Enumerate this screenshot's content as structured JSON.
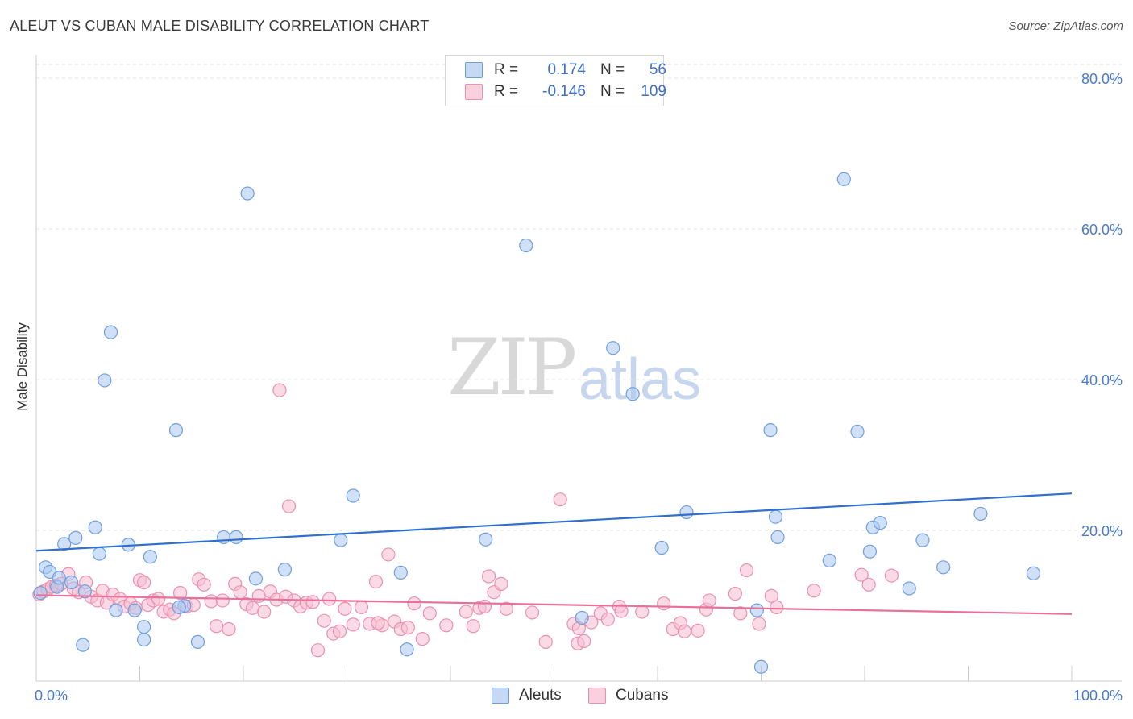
{
  "header": {
    "title": "ALEUT VS CUBAN MALE DISABILITY CORRELATION CHART",
    "source": "Source: ZipAtlas.com"
  },
  "watermark": {
    "zip": "ZIP",
    "atlas": "atlas"
  },
  "legend": {
    "r_label": "R =",
    "n_label": "N =",
    "rows": [
      {
        "series": "Aleuts",
        "r": "0.174",
        "n": "56"
      },
      {
        "series": "Cubans",
        "r": "-0.146",
        "n": "109"
      }
    ]
  },
  "colors": {
    "aleuts_fill": "#aac8f0",
    "aleuts_stroke": "#6f9ee0",
    "aleuts_line": "#2f6fcf",
    "cubans_fill": "#f6bdd0",
    "cubans_stroke": "#ec8fae",
    "cubans_line": "#e8709a",
    "tick_text": "#4a7bd0"
  },
  "chart_data": {
    "type": "scatter",
    "title": "ALEUT VS CUBAN MALE DISABILITY CORRELATION CHART",
    "ylabel": "Male Disability",
    "xlim": [
      0,
      100
    ],
    "ylim": [
      0,
      80
    ],
    "y_ticks": [
      {
        "value": 20,
        "label": "20.0%"
      },
      {
        "value": 40,
        "label": "40.0%"
      },
      {
        "value": 60,
        "label": "60.0%"
      },
      {
        "value": 80,
        "label": "80.0%"
      }
    ],
    "x_tick_labels": [
      {
        "value": 0,
        "label": "0.0%"
      },
      {
        "value": 100,
        "label": "100.0%"
      }
    ],
    "x_minor_ticks": [
      10,
      20,
      30,
      40,
      50,
      60,
      70,
      80,
      90,
      100
    ],
    "grid": "horizontal dashed",
    "legend_position": "top-center",
    "series": [
      {
        "name": "Aleuts",
        "trend": [
          [
            0,
            17.3
          ],
          [
            100,
            24.9
          ]
        ],
        "points": [
          [
            0.4,
            11.7
          ],
          [
            0.9,
            15.1
          ],
          [
            1.3,
            14.5
          ],
          [
            2.0,
            12.5
          ],
          [
            2.2,
            13.7
          ],
          [
            2.7,
            18.2
          ],
          [
            3.4,
            13.1
          ],
          [
            3.8,
            19.0
          ],
          [
            4.5,
            4.8
          ],
          [
            4.7,
            11.9
          ],
          [
            5.7,
            20.4
          ],
          [
            6.1,
            16.9
          ],
          [
            7.2,
            46.3
          ],
          [
            7.7,
            9.4
          ],
          [
            6.6,
            39.9
          ],
          [
            8.9,
            18.1
          ],
          [
            9.5,
            9.4
          ],
          [
            10.4,
            7.2
          ],
          [
            10.4,
            5.5
          ],
          [
            11.0,
            16.5
          ],
          [
            13.5,
            33.3
          ],
          [
            14.3,
            10.0
          ],
          [
            15.6,
            5.2
          ],
          [
            18.1,
            19.1
          ],
          [
            19.3,
            19.1
          ],
          [
            20.4,
            64.7
          ],
          [
            21.2,
            13.6
          ],
          [
            24.0,
            14.8
          ],
          [
            29.4,
            18.7
          ],
          [
            30.6,
            24.6
          ],
          [
            35.2,
            14.4
          ],
          [
            35.8,
            4.2
          ],
          [
            43.4,
            18.8
          ],
          [
            47.3,
            57.8
          ],
          [
            52.7,
            8.4
          ],
          [
            55.7,
            44.2
          ],
          [
            57.6,
            38.1
          ],
          [
            60.4,
            17.7
          ],
          [
            62.8,
            22.4
          ],
          [
            69.6,
            9.4
          ],
          [
            70.9,
            33.3
          ],
          [
            71.4,
            21.8
          ],
          [
            71.6,
            19.1
          ],
          [
            76.6,
            16.0
          ],
          [
            78.0,
            66.6
          ],
          [
            79.3,
            33.1
          ],
          [
            80.5,
            17.2
          ],
          [
            80.8,
            20.4
          ],
          [
            81.5,
            21.0
          ],
          [
            84.3,
            12.3
          ],
          [
            85.6,
            18.7
          ],
          [
            87.6,
            15.1
          ],
          [
            91.2,
            22.2
          ],
          [
            96.3,
            14.3
          ],
          [
            70.0,
            1.9
          ],
          [
            13.8,
            9.8
          ]
        ]
      },
      {
        "name": "Cubans",
        "trend": [
          [
            0,
            11.4
          ],
          [
            100,
            8.9
          ]
        ],
        "points": [
          [
            0.3,
            11.5
          ],
          [
            0.7,
            11.9
          ],
          [
            1.1,
            12.2
          ],
          [
            1.5,
            12.5
          ],
          [
            1.9,
            12.7
          ],
          [
            2.4,
            12.9
          ],
          [
            3.1,
            14.2
          ],
          [
            3.6,
            12.3
          ],
          [
            4.1,
            11.8
          ],
          [
            4.8,
            13.1
          ],
          [
            5.3,
            11.2
          ],
          [
            5.9,
            10.7
          ],
          [
            6.4,
            12.0
          ],
          [
            6.8,
            10.4
          ],
          [
            7.4,
            11.5
          ],
          [
            8.1,
            10.9
          ],
          [
            8.5,
            9.9
          ],
          [
            9.1,
            10.3
          ],
          [
            9.6,
            9.7
          ],
          [
            10.0,
            13.4
          ],
          [
            10.4,
            13.1
          ],
          [
            10.8,
            10.1
          ],
          [
            11.3,
            10.7
          ],
          [
            11.8,
            10.9
          ],
          [
            12.3,
            9.2
          ],
          [
            12.9,
            9.5
          ],
          [
            13.3,
            9.0
          ],
          [
            13.9,
            11.7
          ],
          [
            14.5,
            9.9
          ],
          [
            15.2,
            10.1
          ],
          [
            15.7,
            13.5
          ],
          [
            16.2,
            12.8
          ],
          [
            16.9,
            10.6
          ],
          [
            17.4,
            7.3
          ],
          [
            18.0,
            10.7
          ],
          [
            18.6,
            6.9
          ],
          [
            19.2,
            12.9
          ],
          [
            19.7,
            11.8
          ],
          [
            20.3,
            10.2
          ],
          [
            20.9,
            9.7
          ],
          [
            21.5,
            11.3
          ],
          [
            22.0,
            9.2
          ],
          [
            22.6,
            11.9
          ],
          [
            23.2,
            10.8
          ],
          [
            23.5,
            38.6
          ],
          [
            24.1,
            11.2
          ],
          [
            24.4,
            23.2
          ],
          [
            24.9,
            10.7
          ],
          [
            25.5,
            9.9
          ],
          [
            26.1,
            10.4
          ],
          [
            26.7,
            10.5
          ],
          [
            27.2,
            4.1
          ],
          [
            27.8,
            8.0
          ],
          [
            28.3,
            10.9
          ],
          [
            28.7,
            6.3
          ],
          [
            29.3,
            6.6
          ],
          [
            29.8,
            9.6
          ],
          [
            30.6,
            7.5
          ],
          [
            31.4,
            9.8
          ],
          [
            32.2,
            7.6
          ],
          [
            32.8,
            13.2
          ],
          [
            33.4,
            7.4
          ],
          [
            34.0,
            16.8
          ],
          [
            34.6,
            7.9
          ],
          [
            35.2,
            6.9
          ],
          [
            35.9,
            7.1
          ],
          [
            36.5,
            10.3
          ],
          [
            37.3,
            5.6
          ],
          [
            38.0,
            9.0
          ],
          [
            39.6,
            7.4
          ],
          [
            41.5,
            9.2
          ],
          [
            42.2,
            7.3
          ],
          [
            42.8,
            9.7
          ],
          [
            43.3,
            9.9
          ],
          [
            43.7,
            13.9
          ],
          [
            44.2,
            11.8
          ],
          [
            44.9,
            12.9
          ],
          [
            45.4,
            9.6
          ],
          [
            47.9,
            9.1
          ],
          [
            49.2,
            5.2
          ],
          [
            50.6,
            24.1
          ],
          [
            51.9,
            7.6
          ],
          [
            52.3,
            5.0
          ],
          [
            52.9,
            5.3
          ],
          [
            53.6,
            7.8
          ],
          [
            54.5,
            9.0
          ],
          [
            55.2,
            8.2
          ],
          [
            56.3,
            9.9
          ],
          [
            58.5,
            9.2
          ],
          [
            60.6,
            10.3
          ],
          [
            61.5,
            6.9
          ],
          [
            62.2,
            7.7
          ],
          [
            62.6,
            6.6
          ],
          [
            63.9,
            6.7
          ],
          [
            64.7,
            9.5
          ],
          [
            65.0,
            10.7
          ],
          [
            67.5,
            11.6
          ],
          [
            68.0,
            9.0
          ],
          [
            68.6,
            14.7
          ],
          [
            69.8,
            7.6
          ],
          [
            71.0,
            11.3
          ],
          [
            71.5,
            9.8
          ],
          [
            75.1,
            12.0
          ],
          [
            79.7,
            14.1
          ],
          [
            80.4,
            12.8
          ],
          [
            82.6,
            14.0
          ],
          [
            52.4,
            7.0
          ],
          [
            56.5,
            9.3
          ],
          [
            33.0,
            7.7
          ]
        ]
      }
    ]
  },
  "bottom_legend": [
    {
      "label": "Aleuts"
    },
    {
      "label": "Cubans"
    }
  ]
}
